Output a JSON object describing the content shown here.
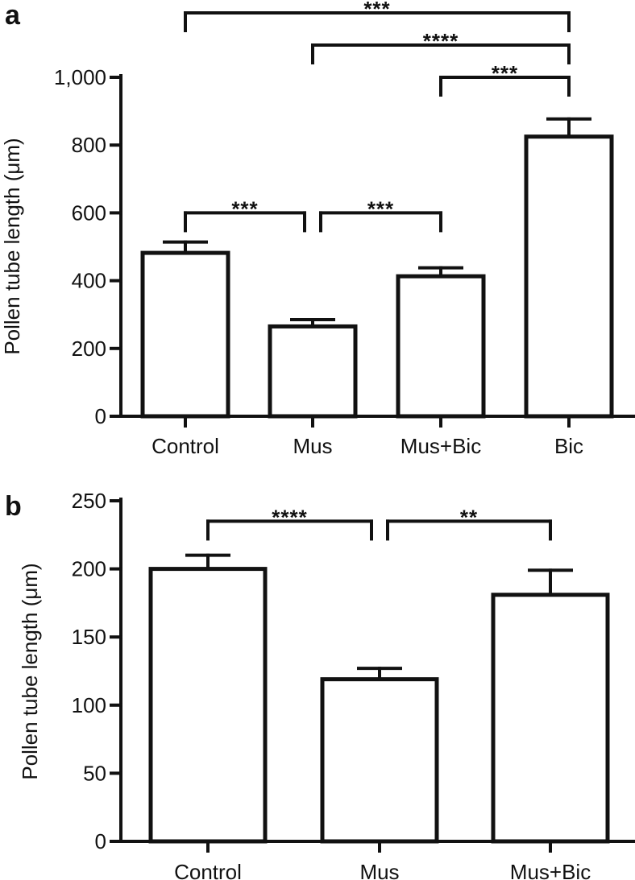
{
  "colors": {
    "ink": "#111111",
    "bar_fill": "#ffffff"
  },
  "chart_data": [
    {
      "type": "bar",
      "panel_label": "a",
      "categories": [
        "Control",
        "Mus",
        "Mus+Bic",
        "Bic"
      ],
      "values": [
        482,
        265,
        413,
        825
      ],
      "error_bars": [
        32,
        20,
        25,
        52
      ],
      "ylabel": "Pollen tube length (μm)",
      "xlabel": "",
      "ylim": [
        0,
        1000
      ],
      "yticks": [
        0,
        200,
        400,
        600,
        800,
        1000
      ],
      "ytick_labels": [
        "0",
        "200",
        "400",
        "600",
        "800",
        "1,000"
      ],
      "grid": false,
      "significance": [
        {
          "from": 0,
          "to": 1,
          "label": "***",
          "level": 600
        },
        {
          "from": 1,
          "to": 2,
          "label": "***",
          "level": 600
        },
        {
          "from": 2,
          "to": 3,
          "label": "***",
          "level": 1000
        },
        {
          "from": 1,
          "to": 3,
          "label": "****",
          "level": 1095
        },
        {
          "from": 0,
          "to": 3,
          "label": "***",
          "level": 1190
        }
      ]
    },
    {
      "type": "bar",
      "panel_label": "b",
      "categories": [
        "Control",
        "Mus",
        "Mus+Bic"
      ],
      "values": [
        200,
        119,
        181
      ],
      "error_bars": [
        10,
        8,
        18
      ],
      "ylabel": "Pollen tube length (μm)",
      "xlabel": "",
      "ylim": [
        0,
        250
      ],
      "yticks": [
        0,
        50,
        100,
        150,
        200,
        250
      ],
      "ytick_labels": [
        "0",
        "50",
        "100",
        "150",
        "200",
        "250"
      ],
      "grid": false,
      "significance": [
        {
          "from": 0,
          "to": 1,
          "label": "****",
          "level": 235
        },
        {
          "from": 1,
          "to": 2,
          "label": "**",
          "level": 235
        }
      ]
    }
  ]
}
